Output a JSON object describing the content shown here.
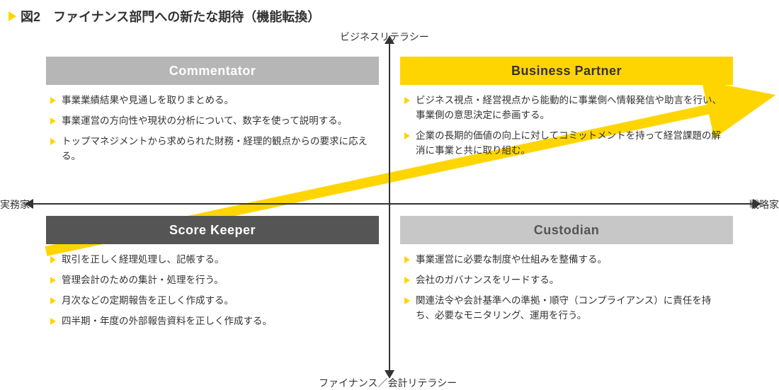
{
  "title": "図2　ファイナンス部門への新たな期待（機能転換）",
  "axis": {
    "top": "ビジネスリテラシー",
    "bottom": "ファイナンス／会計リテラシー",
    "left": "実務家",
    "right": "戦略家"
  },
  "colors": {
    "accent": "#ffd500",
    "gray_light": "#b6b6b6",
    "gray_dark": "#555555",
    "gray_mid": "#c7c7c7",
    "text_on_light": "#ffffff",
    "text_on_yellow": "#333333",
    "body_text": "#333333",
    "axis": "#333333",
    "diag_arrow": "#ffd500"
  },
  "quadrants": {
    "top_left": {
      "title": "Commentator",
      "header_bg": "#b6b6b6",
      "header_fg": "#ffffff",
      "bullets": [
        "事業業績結果や見通しを取りまとめる。",
        "事業運営の方向性や現状の分析について、数字を使って説明する。",
        "トップマネジメントから求められた財務・経理的観点からの要求に応える。"
      ]
    },
    "top_right": {
      "title": "Business Partner",
      "header_bg": "#ffd500",
      "header_fg": "#333333",
      "bullets": [
        "ビジネス視点・経営視点から能動的に事業側へ情報発信や助言を行い、事業側の意思決定に参画する。",
        "企業の長期的価値の向上に対してコミットメントを持って経営課題の解消に事業と共に取り組む。"
      ]
    },
    "bottom_left": {
      "title": "Score Keeper",
      "header_bg": "#555555",
      "header_fg": "#ffffff",
      "bullets": [
        "取引を正しく経理処理し、記帳する。",
        "管理会計のための集計・処理を行う。",
        "月次などの定期報告を正しく作成する。",
        "四半期・年度の外部報告資料を正しく作成する。"
      ]
    },
    "bottom_right": {
      "title": "Custodian",
      "header_bg": "#c7c7c7",
      "header_fg": "#555555",
      "bullets": [
        "事業運営に必要な制度や仕組みを整備する。",
        "会社のガバナンスをリードする。",
        "関連法令や会計基準への準拠・順守（コンプライアンス）に責任を持ち、必要なモニタリング、運用を行う。"
      ]
    }
  },
  "diag_arrow": {
    "from": [
      65,
      355
    ],
    "to": [
      1075,
      138
    ],
    "thickness": 14,
    "color": "#ffd500"
  }
}
